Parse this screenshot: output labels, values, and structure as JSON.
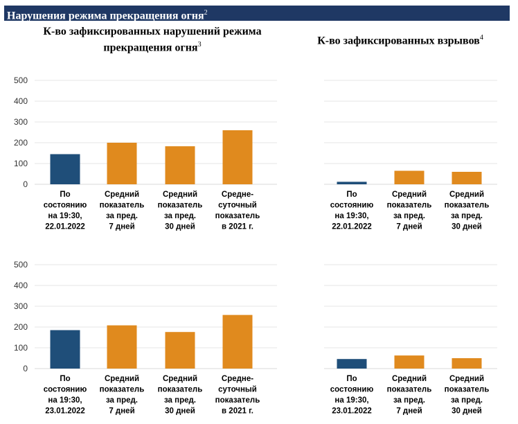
{
  "header": {
    "title": "Нарушения режима прекращения огня",
    "title_note": "2"
  },
  "subtitles": {
    "left": "К-во зафиксированных нарушений режима прекращения огня",
    "left_note": "3",
    "right": "К-во зафиксированных взрывов",
    "right_note": "4"
  },
  "colors": {
    "current": "#1f4e79",
    "average": "#e08a1e",
    "grid": "#e6e6e6"
  },
  "chart_data": [
    {
      "type": "bar",
      "title": "К-во зафиксированных нарушений режима прекращения огня",
      "categories": [
        [
          "По",
          "состоянию",
          "на 19:30,",
          "22.01.2022"
        ],
        [
          "Средний",
          "показатель",
          "за пред.",
          "7 дней"
        ],
        [
          "Средний",
          "показатель",
          "за пред.",
          "30 дней"
        ],
        [
          "Средне-",
          "суточный",
          "показатель",
          "в 2021 г."
        ]
      ],
      "values": [
        145,
        200,
        183,
        260
      ],
      "bar_colors": [
        "current",
        "average",
        "average",
        "average"
      ],
      "ylim": [
        0,
        500
      ],
      "yticks": [
        0,
        100,
        200,
        300,
        400,
        500
      ],
      "grid": true
    },
    {
      "type": "bar",
      "title": "К-во зафиксированных взрывов",
      "categories": [
        [
          "По",
          "состоянию",
          "на 19:30,",
          "22.01.2022"
        ],
        [
          "Средний",
          "показатель",
          "за пред.",
          "7 дней"
        ],
        [
          "Средний",
          "показатель",
          "за пред.",
          "30 дней"
        ]
      ],
      "values": [
        12,
        65,
        60
      ],
      "bar_colors": [
        "current",
        "average",
        "average"
      ],
      "ylim": [
        0,
        500
      ],
      "grid": true
    },
    {
      "type": "bar",
      "title": "К-во зафиксированных нарушений режима прекращения огня",
      "categories": [
        [
          "По",
          "состоянию",
          "на 19:30,",
          "23.01.2022"
        ],
        [
          "Средний",
          "показатель",
          "за пред.",
          "7 дней"
        ],
        [
          "Средний",
          "показатель",
          "за пред.",
          "30 дней"
        ],
        [
          "Средне-",
          "суточный",
          "показатель",
          "в 2021 г."
        ]
      ],
      "values": [
        185,
        208,
        176,
        258
      ],
      "bar_colors": [
        "current",
        "average",
        "average",
        "average"
      ],
      "ylim": [
        0,
        500
      ],
      "yticks": [
        0,
        100,
        200,
        300,
        400,
        500
      ],
      "grid": true
    },
    {
      "type": "bar",
      "title": "К-во зафиксированных взрывов",
      "categories": [
        [
          "По",
          "состоянию",
          "на 19:30,",
          "23.01.2022"
        ],
        [
          "Средний",
          "показатель",
          "за пред.",
          "7 дней"
        ],
        [
          "Средний",
          "показатель",
          "за пред.",
          "30 дней"
        ]
      ],
      "values": [
        46,
        63,
        50
      ],
      "bar_colors": [
        "current",
        "average",
        "average"
      ],
      "ylim": [
        0,
        500
      ],
      "grid": true
    }
  ]
}
